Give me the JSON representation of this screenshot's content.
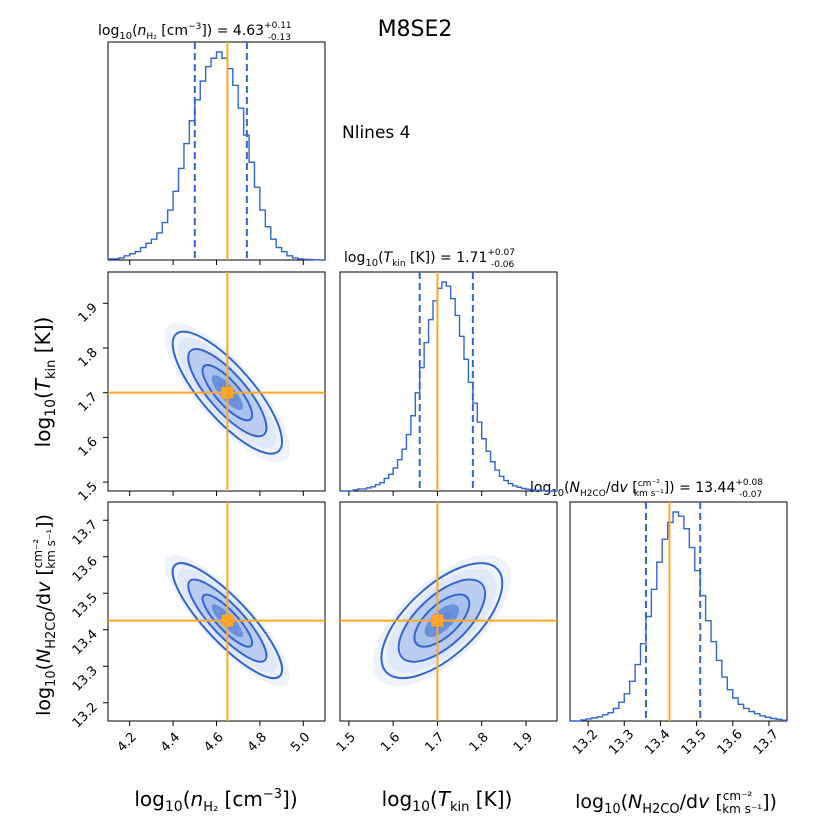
{
  "figure": {
    "title": "M8SE2",
    "annotation": "Nlines 4"
  },
  "colors": {
    "posterior": "#3366cc",
    "truth": "#ffa629",
    "fill_light": "#dbe5f7",
    "fill_mid": "#a9c0ec",
    "fill_dark": "#5f89d9"
  },
  "params": [
    {
      "key": "nH2",
      "xlabel": "log10(nH2 [cm^-3])",
      "title_prefix": "log10(nH2 [cm^-3]) = ",
      "median": "4.63",
      "err_plus": "+0.11",
      "err_minus": "-0.13",
      "truth": 4.65,
      "q16": 4.5,
      "q84": 4.74,
      "range": [
        4.1,
        5.1
      ],
      "ticks": [
        "4.2",
        "4.4",
        "4.6",
        "4.8",
        "5.0"
      ]
    },
    {
      "key": "Tkin",
      "ylabel": "log10(Tkin [K])",
      "xlabel": "log10(Tkin [K])",
      "title_prefix": "log10(Tkin [K]) = ",
      "median": "1.71",
      "err_plus": "+0.07",
      "err_minus": "-0.06",
      "truth": 1.7,
      "q16": 1.66,
      "q84": 1.78,
      "range": [
        1.48,
        1.97
      ],
      "ticks": [
        "1.5",
        "1.6",
        "1.7",
        "1.8",
        "1.9"
      ]
    },
    {
      "key": "NH2CO",
      "ylabel": "log10(NH2CO/dv [cm^-2 / km s^-1])",
      "xlabel": "log10(NH2CO/dv [cm^-2 / km s^-1])",
      "title_prefix": "log10(NH2CO/dv [cm^-2 / km s^-1]) = ",
      "median": "13.44",
      "err_plus": "+0.08",
      "err_minus": "-0.07",
      "truth": 13.425,
      "q16": 13.36,
      "q84": 13.51,
      "range": [
        13.15,
        13.75
      ],
      "ticks": [
        "13.2",
        "13.3",
        "13.4",
        "13.5",
        "13.6",
        "13.7"
      ]
    }
  ],
  "chart_data": [
    {
      "type": "histogram",
      "panel": "nH2",
      "x": [
        4.1,
        4.125,
        4.15,
        4.175,
        4.2,
        4.225,
        4.25,
        4.275,
        4.3,
        4.325,
        4.35,
        4.375,
        4.4,
        4.425,
        4.45,
        4.475,
        4.5,
        4.525,
        4.55,
        4.575,
        4.6,
        4.625,
        4.65,
        4.675,
        4.7,
        4.725,
        4.75,
        4.775,
        4.8,
        4.825,
        4.85,
        4.875,
        4.9,
        4.925,
        4.95,
        4.975,
        5.0,
        5.025,
        5.05,
        5.075
      ],
      "values": [
        0.005,
        0.005,
        0.01,
        0.02,
        0.03,
        0.04,
        0.06,
        0.08,
        0.1,
        0.13,
        0.18,
        0.24,
        0.33,
        0.44,
        0.56,
        0.67,
        0.77,
        0.86,
        0.93,
        0.97,
        1.0,
        0.97,
        0.92,
        0.84,
        0.73,
        0.6,
        0.47,
        0.35,
        0.24,
        0.16,
        0.1,
        0.06,
        0.04,
        0.02,
        0.01,
        0.005,
        0.003,
        0.002,
        0.001,
        0.0
      ]
    },
    {
      "type": "histogram",
      "panel": "Tkin",
      "x": [
        1.48,
        1.49,
        1.5,
        1.51,
        1.52,
        1.53,
        1.54,
        1.55,
        1.56,
        1.57,
        1.58,
        1.59,
        1.6,
        1.61,
        1.62,
        1.63,
        1.64,
        1.65,
        1.66,
        1.67,
        1.68,
        1.69,
        1.7,
        1.71,
        1.72,
        1.73,
        1.74,
        1.75,
        1.76,
        1.77,
        1.78,
        1.79,
        1.8,
        1.81,
        1.82,
        1.83,
        1.84,
        1.85,
        1.86,
        1.87,
        1.88,
        1.89,
        1.9,
        1.91,
        1.92,
        1.93,
        1.94,
        1.95,
        1.96
      ],
      "values": [
        0.0,
        0.0,
        0.0,
        0.005,
        0.01,
        0.01,
        0.015,
        0.02,
        0.03,
        0.04,
        0.06,
        0.08,
        0.11,
        0.15,
        0.2,
        0.27,
        0.36,
        0.47,
        0.59,
        0.71,
        0.82,
        0.91,
        0.97,
        1.0,
        0.98,
        0.92,
        0.84,
        0.74,
        0.63,
        0.52,
        0.42,
        0.33,
        0.25,
        0.19,
        0.14,
        0.1,
        0.07,
        0.05,
        0.035,
        0.025,
        0.018,
        0.012,
        0.008,
        0.005,
        0.003,
        0.002,
        0.001,
        0.0,
        0.0
      ]
    },
    {
      "type": "histogram",
      "panel": "NH2CO",
      "x": [
        13.15,
        13.165,
        13.18,
        13.195,
        13.21,
        13.225,
        13.24,
        13.255,
        13.27,
        13.285,
        13.3,
        13.315,
        13.33,
        13.345,
        13.36,
        13.375,
        13.39,
        13.405,
        13.42,
        13.435,
        13.45,
        13.465,
        13.48,
        13.495,
        13.51,
        13.525,
        13.54,
        13.555,
        13.57,
        13.585,
        13.6,
        13.615,
        13.63,
        13.645,
        13.66,
        13.675,
        13.69,
        13.705,
        13.72,
        13.735
      ],
      "values": [
        0.0,
        0.0,
        0.005,
        0.01,
        0.015,
        0.02,
        0.03,
        0.04,
        0.06,
        0.09,
        0.13,
        0.19,
        0.27,
        0.37,
        0.5,
        0.63,
        0.76,
        0.87,
        0.95,
        1.0,
        0.98,
        0.92,
        0.83,
        0.72,
        0.6,
        0.48,
        0.38,
        0.29,
        0.21,
        0.15,
        0.11,
        0.08,
        0.06,
        0.045,
        0.035,
        0.025,
        0.018,
        0.012,
        0.008,
        0.004
      ]
    },
    {
      "type": "contour",
      "panel": "nH2-Tkin",
      "x_param": "nH2",
      "y_param": "Tkin",
      "center": [
        4.65,
        1.7
      ],
      "sigma": [
        0.12,
        0.065
      ],
      "correlation": -0.8,
      "levels": [
        "1-sigma",
        "2-sigma",
        "3-sigma"
      ]
    },
    {
      "type": "contour",
      "panel": "nH2-NH2CO",
      "x_param": "nH2",
      "y_param": "NH2CO",
      "center": [
        4.65,
        13.425
      ],
      "sigma": [
        0.12,
        0.075
      ],
      "correlation": -0.85,
      "levels": [
        "1-sigma",
        "2-sigma",
        "3-sigma"
      ]
    },
    {
      "type": "contour",
      "panel": "Tkin-NH2CO",
      "x_param": "Tkin",
      "y_param": "NH2CO",
      "center": [
        1.71,
        13.425
      ],
      "sigma": [
        0.065,
        0.075
      ],
      "correlation": 0.65,
      "levels": [
        "1-sigma",
        "2-sigma",
        "3-sigma"
      ]
    }
  ]
}
